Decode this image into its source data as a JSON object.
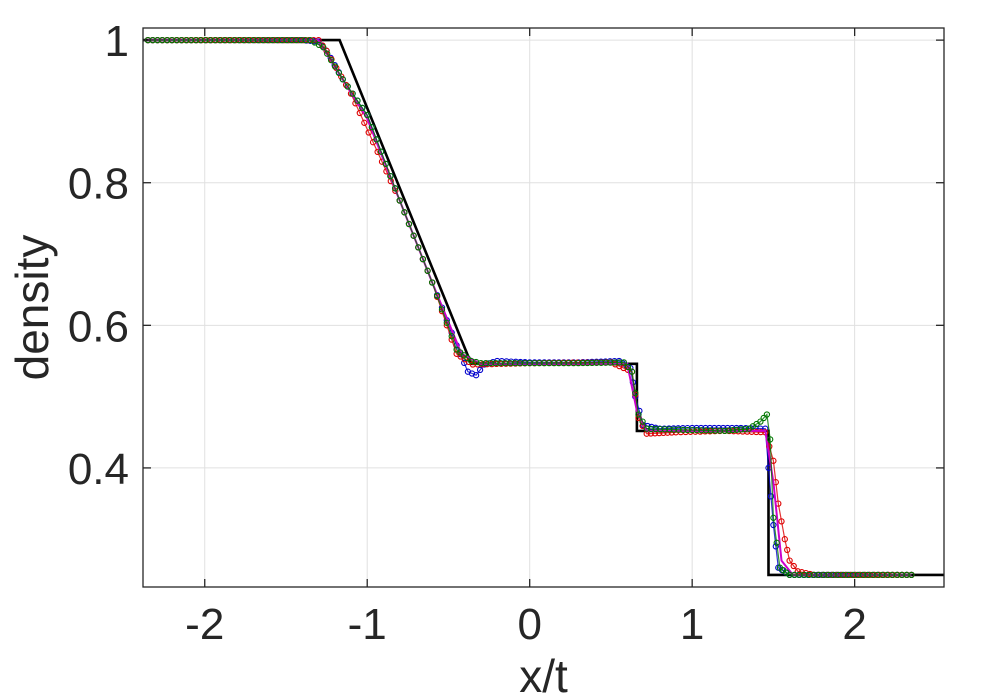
{
  "chart_data": {
    "type": "line",
    "title": "",
    "xlabel": "x/t",
    "ylabel": "density",
    "xlim": [
      -2.38,
      2.55
    ],
    "ylim": [
      0.233,
      1.017
    ],
    "x_ticks": [
      -2,
      -1,
      0,
      1,
      2
    ],
    "x_tick_labels": [
      "-2",
      "-1",
      "0",
      "1",
      "2"
    ],
    "y_ticks": [
      0.4,
      0.6,
      0.8,
      1.0
    ],
    "y_tick_labels": [
      "0.4",
      "0.6",
      "0.8",
      "1"
    ],
    "grid": true,
    "legend": "none",
    "series": [
      {
        "color": "#000000",
        "style": "line",
        "points": [
          [
            -2.38,
            1.0
          ],
          [
            -1.17,
            1.0
          ],
          [
            -0.36,
            0.546
          ],
          [
            0.66,
            0.546
          ],
          [
            0.66,
            0.452
          ],
          [
            1.47,
            0.452
          ],
          [
            1.47,
            0.25
          ],
          [
            2.55,
            0.25
          ]
        ]
      },
      {
        "color": "#0000cc",
        "style": "markers",
        "points": [
          [
            -2.35,
            1.0
          ],
          [
            -1.4,
            1.0
          ],
          [
            -1.3,
            0.998
          ],
          [
            -1.25,
            0.985
          ],
          [
            -1.15,
            0.945
          ],
          [
            -1.0,
            0.895
          ],
          [
            -0.8,
            0.775
          ],
          [
            -0.6,
            0.66
          ],
          [
            -0.45,
            0.572
          ],
          [
            -0.38,
            0.535
          ],
          [
            -0.33,
            0.53
          ],
          [
            -0.28,
            0.545
          ],
          [
            -0.2,
            0.55
          ],
          [
            0.0,
            0.548
          ],
          [
            0.3,
            0.548
          ],
          [
            0.55,
            0.55
          ],
          [
            0.62,
            0.54
          ],
          [
            0.65,
            0.5
          ],
          [
            0.7,
            0.46
          ],
          [
            0.8,
            0.455
          ],
          [
            1.0,
            0.456
          ],
          [
            1.3,
            0.456
          ],
          [
            1.45,
            0.455
          ],
          [
            1.47,
            0.4
          ],
          [
            1.5,
            0.32
          ],
          [
            1.53,
            0.26
          ],
          [
            1.6,
            0.25
          ],
          [
            2.0,
            0.25
          ],
          [
            2.35,
            0.25
          ]
        ]
      },
      {
        "color": "#dd0000",
        "style": "markers",
        "points": [
          [
            -2.35,
            1.0
          ],
          [
            -1.3,
            1.0
          ],
          [
            -1.25,
            0.985
          ],
          [
            -1.1,
            0.925
          ],
          [
            -0.8,
            0.775
          ],
          [
            -0.6,
            0.66
          ],
          [
            -0.45,
            0.56
          ],
          [
            -0.35,
            0.545
          ],
          [
            0.0,
            0.547
          ],
          [
            0.5,
            0.548
          ],
          [
            0.63,
            0.535
          ],
          [
            0.67,
            0.47
          ],
          [
            0.72,
            0.448
          ],
          [
            0.9,
            0.45
          ],
          [
            1.2,
            0.452
          ],
          [
            1.45,
            0.45
          ],
          [
            1.5,
            0.41
          ],
          [
            1.53,
            0.35
          ],
          [
            1.57,
            0.3
          ],
          [
            1.6,
            0.27
          ],
          [
            1.65,
            0.255
          ],
          [
            1.75,
            0.25
          ],
          [
            2.35,
            0.25
          ]
        ]
      },
      {
        "color": "#cc00cc",
        "style": "line",
        "points": [
          [
            -2.35,
            1.0
          ],
          [
            -1.3,
            1.0
          ],
          [
            -1.22,
            0.97
          ],
          [
            -1.0,
            0.89
          ],
          [
            -0.8,
            0.775
          ],
          [
            -0.6,
            0.66
          ],
          [
            -0.42,
            0.56
          ],
          [
            -0.3,
            0.546
          ],
          [
            0.0,
            0.546
          ],
          [
            0.6,
            0.546
          ],
          [
            0.66,
            0.48
          ],
          [
            0.72,
            0.452
          ],
          [
            1.0,
            0.452
          ],
          [
            1.45,
            0.452
          ],
          [
            1.5,
            0.38
          ],
          [
            1.55,
            0.27
          ],
          [
            1.62,
            0.25
          ],
          [
            2.35,
            0.25
          ]
        ]
      },
      {
        "color": "#007700",
        "style": "markers",
        "points": [
          [
            -2.35,
            1.0
          ],
          [
            -1.35,
            1.0
          ],
          [
            -1.27,
            0.99
          ],
          [
            -1.15,
            0.945
          ],
          [
            -1.0,
            0.895
          ],
          [
            -0.8,
            0.775
          ],
          [
            -0.6,
            0.66
          ],
          [
            -0.45,
            0.566
          ],
          [
            -0.36,
            0.55
          ],
          [
            -0.3,
            0.547
          ],
          [
            0.0,
            0.547
          ],
          [
            0.3,
            0.547
          ],
          [
            0.58,
            0.548
          ],
          [
            0.63,
            0.535
          ],
          [
            0.67,
            0.475
          ],
          [
            0.72,
            0.455
          ],
          [
            1.0,
            0.453
          ],
          [
            1.2,
            0.452
          ],
          [
            1.35,
            0.455
          ],
          [
            1.42,
            0.465
          ],
          [
            1.46,
            0.475
          ],
          [
            1.48,
            0.44
          ],
          [
            1.5,
            0.33
          ],
          [
            1.54,
            0.26
          ],
          [
            1.6,
            0.25
          ],
          [
            2.35,
            0.25
          ]
        ]
      }
    ]
  }
}
